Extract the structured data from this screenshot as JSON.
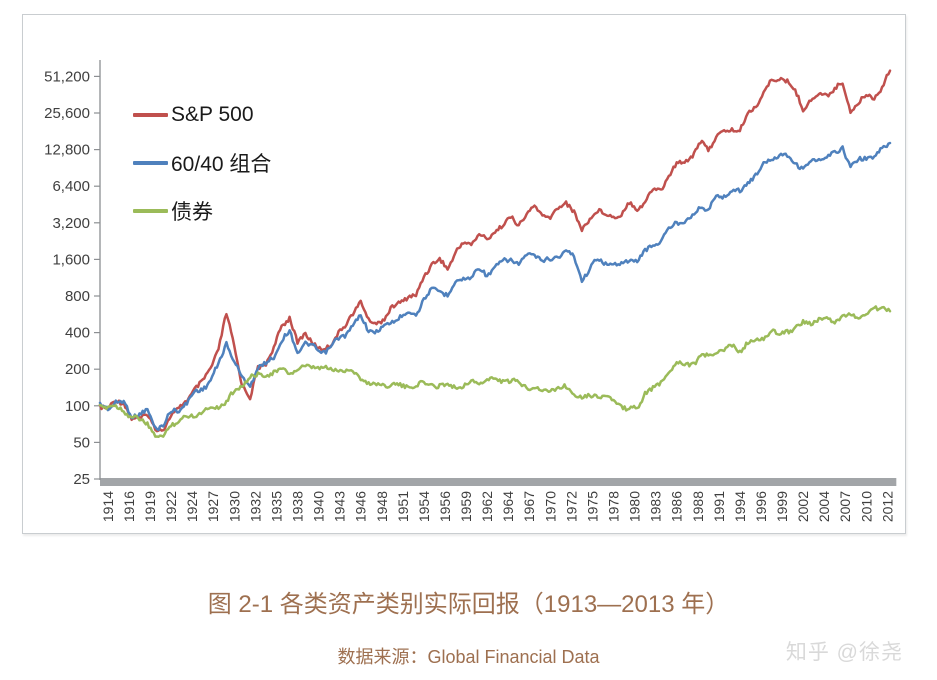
{
  "watermark": "知乎 @徐尧",
  "chart_data": {
    "type": "line",
    "title": "图 2-1 各类资产类别实际回报（1913—2013 年）",
    "source_note": "数据来源：Global Financial Data",
    "grid": false,
    "legend_position": "inside-top-left",
    "y_axis": {
      "scale": "log2",
      "range": [
        25,
        51200
      ],
      "tick_labels": [
        "51,200",
        "25,600",
        "12,800",
        "6,400",
        "3,200",
        "1,600",
        "800",
        "400",
        "200",
        "100",
        "50",
        "25"
      ],
      "tick_values": [
        51200,
        25600,
        12800,
        6400,
        3200,
        1600,
        800,
        400,
        200,
        100,
        50,
        25
      ]
    },
    "x_axis": {
      "range": [
        1913,
        2013
      ],
      "tick_interval_months": 32,
      "tick_labels": [
        "1914",
        "1916",
        "1919",
        "1922",
        "1924",
        "1927",
        "1930",
        "1932",
        "1935",
        "1938",
        "1940",
        "1943",
        "1946",
        "1948",
        "1951",
        "1954",
        "1956",
        "1959",
        "1962",
        "1964",
        "1967",
        "1970",
        "1972",
        "1975",
        "1978",
        "1980",
        "1983",
        "1986",
        "1988",
        "1991",
        "1994",
        "1996",
        "1999",
        "2002",
        "2004",
        "2007",
        "2010",
        "2012"
      ]
    },
    "years": [
      1913,
      1914,
      1915,
      1916,
      1917,
      1918,
      1919,
      1920,
      1921,
      1922,
      1923,
      1924,
      1925,
      1926,
      1927,
      1928,
      1929,
      1930,
      1931,
      1932,
      1933,
      1934,
      1935,
      1936,
      1937,
      1938,
      1939,
      1940,
      1941,
      1942,
      1943,
      1944,
      1945,
      1946,
      1947,
      1948,
      1949,
      1950,
      1951,
      1952,
      1953,
      1954,
      1955,
      1956,
      1957,
      1958,
      1959,
      1960,
      1961,
      1962,
      1963,
      1964,
      1965,
      1966,
      1967,
      1968,
      1969,
      1970,
      1971,
      1972,
      1973,
      1974,
      1975,
      1976,
      1977,
      1978,
      1979,
      1980,
      1981,
      1982,
      1983,
      1984,
      1985,
      1986,
      1987,
      1988,
      1989,
      1990,
      1991,
      1992,
      1993,
      1994,
      1995,
      1996,
      1997,
      1998,
      1999,
      2000,
      2001,
      2002,
      2003,
      2004,
      2005,
      2006,
      2007,
      2008,
      2009,
      2010,
      2011,
      2012,
      2013
    ],
    "series": [
      {
        "name": "S&P 500",
        "color": "#c0504d",
        "start_value": 100,
        "values": [
          100,
          92,
          112,
          108,
          76,
          80,
          88,
          62,
          64,
          86,
          92,
          112,
          140,
          155,
          205,
          300,
          560,
          310,
          150,
          112,
          210,
          225,
          290,
          460,
          540,
          320,
          400,
          330,
          280,
          310,
          390,
          440,
          580,
          740,
          490,
          480,
          530,
          630,
          720,
          800,
          780,
          1180,
          1480,
          1560,
          1350,
          1850,
          2150,
          2150,
          2650,
          2250,
          2750,
          3150,
          3450,
          3100,
          3800,
          4300,
          3700,
          3600,
          4100,
          4800,
          4000,
          2700,
          3500,
          4100,
          3700,
          3600,
          3800,
          4600,
          4200,
          4800,
          5900,
          6100,
          7800,
          9500,
          10500,
          11500,
          14500,
          13000,
          16500,
          17500,
          19000,
          18500,
          24500,
          29500,
          38000,
          46000,
          50000,
          47000,
          38000,
          28000,
          33000,
          35500,
          36500,
          41000,
          44000,
          27000,
          31000,
          35500,
          34500,
          42000,
          57000
        ]
      },
      {
        "name": "60/40 组合",
        "color": "#4f81bd",
        "start_value": 100,
        "values": [
          100,
          96,
          108,
          105,
          83,
          86,
          90,
          66,
          70,
          88,
          93,
          107,
          128,
          138,
          165,
          215,
          330,
          235,
          165,
          150,
          205,
          220,
          255,
          350,
          400,
          280,
          330,
          300,
          275,
          295,
          345,
          385,
          460,
          540,
          420,
          410,
          440,
          500,
          540,
          580,
          570,
          760,
          880,
          900,
          820,
          1020,
          1130,
          1150,
          1330,
          1200,
          1380,
          1520,
          1620,
          1480,
          1680,
          1780,
          1580,
          1560,
          1720,
          1900,
          1650,
          1100,
          1350,
          1600,
          1500,
          1450,
          1450,
          1600,
          1550,
          1850,
          2150,
          2250,
          2800,
          3300,
          3300,
          3600,
          4400,
          4100,
          5100,
          5400,
          5900,
          5700,
          7000,
          7900,
          9500,
          11000,
          11600,
          11300,
          10100,
          8900,
          10100,
          10700,
          10900,
          11800,
          13500,
          9200,
          10400,
          11200,
          11000,
          12800,
          14500
        ]
      },
      {
        "name": "债券",
        "color": "#9bbb59",
        "start_value": 100,
        "values": [
          100,
          99,
          97,
          93,
          81,
          76,
          72,
          57,
          54,
          72,
          75,
          80,
          85,
          90,
          95,
          100,
          108,
          130,
          150,
          172,
          176,
          184,
          188,
          195,
          190,
          198,
          205,
          212,
          206,
          196,
          200,
          196,
          190,
          172,
          152,
          148,
          151,
          150,
          144,
          145,
          147,
          152,
          150,
          146,
          147,
          145,
          146,
          155,
          158,
          162,
          163,
          163,
          160,
          152,
          146,
          141,
          131,
          136,
          141,
          140,
          130,
          118,
          118,
          124,
          120,
          108,
          100,
          95,
          92,
          130,
          140,
          150,
          195,
          230,
          215,
          225,
          250,
          255,
          280,
          285,
          310,
          285,
          330,
          335,
          365,
          410,
          380,
          420,
          430,
          480,
          490,
          505,
          510,
          505,
          530,
          560,
          540,
          570,
          620,
          660,
          600
        ]
      }
    ]
  }
}
